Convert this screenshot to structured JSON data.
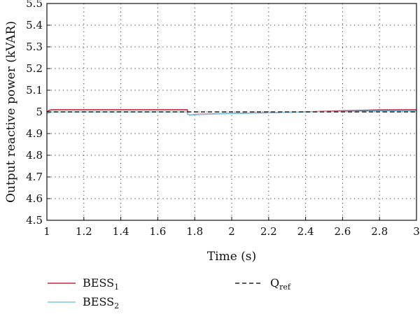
{
  "chart_data": {
    "type": "line",
    "xlabel": "Time (s)",
    "ylabel": "Output reactive power (kVAR)",
    "xlim": [
      1,
      3
    ],
    "ylim": [
      4.5,
      5.5
    ],
    "grid": true,
    "legend_position": "bottom",
    "x_ticks": [
      1,
      1.2,
      1.4,
      1.6,
      1.8,
      2,
      2.2,
      2.4,
      2.6,
      2.8,
      3
    ],
    "y_ticks": [
      4.5,
      4.6,
      4.7,
      4.8,
      4.9,
      5,
      5.1,
      5.2,
      5.3,
      5.4,
      5.5
    ],
    "series": [
      {
        "name": "BESS",
        "subscript": "1",
        "color": "#c0283a",
        "dash": "solid",
        "x": [
          1.0,
          1.01,
          1.02,
          1.03,
          1.1,
          1.3,
          1.5,
          1.7,
          1.76,
          1.761,
          1.775,
          1.8,
          1.9,
          2.0,
          2.2,
          2.4,
          2.6,
          2.8,
          3.0
        ],
        "y": [
          5.0,
          5.006,
          5.009,
          5.01,
          5.01,
          5.01,
          5.01,
          5.01,
          5.01,
          4.99,
          4.985,
          4.988,
          4.991,
          4.993,
          4.996,
          5.0,
          5.005,
          5.009,
          5.01
        ]
      },
      {
        "name": "BESS",
        "subscript": "2",
        "color": "#7ec8e3",
        "dash": "solid",
        "x": [
          1.0,
          1.01,
          1.02,
          1.03,
          1.1,
          1.3,
          1.5,
          1.7,
          1.76,
          1.761,
          1.775,
          1.8,
          1.9,
          2.0,
          2.2,
          2.4,
          2.6,
          2.8,
          3.0
        ],
        "y": [
          4.99,
          4.995,
          4.998,
          5.0,
          5.0,
          5.0,
          5.0,
          5.0,
          5.0,
          4.99,
          4.984,
          4.987,
          4.99,
          4.992,
          4.996,
          5.0,
          5.002,
          5.004,
          5.004
        ]
      },
      {
        "name": "Q",
        "subscript": "ref",
        "color": "#222222",
        "dash": "dashed",
        "x": [
          1.0,
          3.0
        ],
        "y": [
          5.0,
          5.0
        ]
      }
    ]
  }
}
